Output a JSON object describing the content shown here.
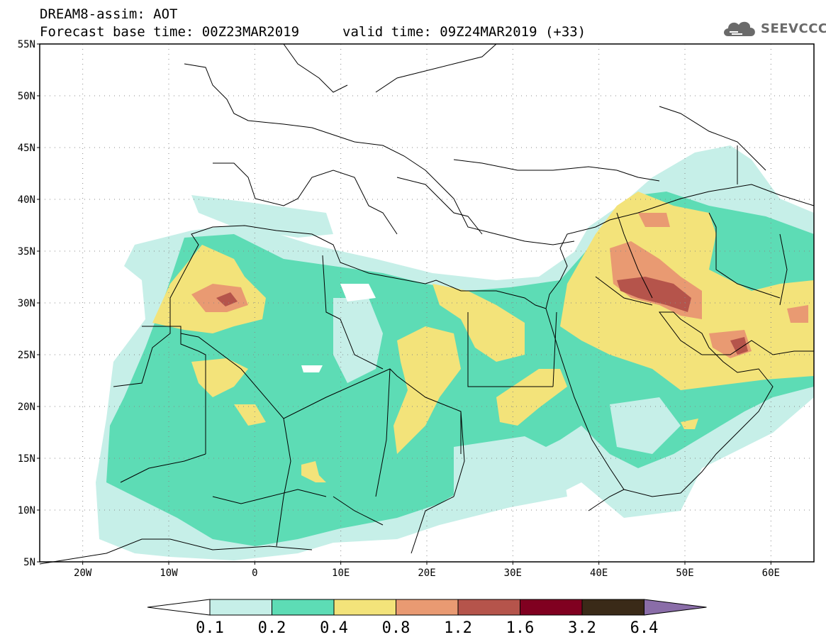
{
  "header": {
    "title": "DREAM8-assim: AOT",
    "base_time": "Forecast base time: 00Z23MAR2019",
    "valid_time": "valid time: 09Z24MAR2019 (+33)"
  },
  "logo": {
    "text": "SEEVCCC",
    "icon": "cloud-icon"
  },
  "map": {
    "lat_labels": [
      "55N",
      "50N",
      "45N",
      "40N",
      "35N",
      "30N",
      "25N",
      "20N",
      "15N",
      "10N",
      "5N"
    ],
    "lon_labels": [
      "20W",
      "10W",
      "0",
      "10E",
      "20E",
      "30E",
      "40E",
      "50E",
      "60E"
    ],
    "lat_range": [
      5,
      55
    ],
    "lon_range": [
      -25,
      65
    ],
    "grid": "dotted"
  },
  "colorbar": {
    "labels": [
      "0.1",
      "0.2",
      "0.4",
      "0.8",
      "1.2",
      "1.6",
      "3.2",
      "6.4"
    ],
    "colors": [
      "#ffffff",
      "#c6efe8",
      "#5ddcb5",
      "#f3e37a",
      "#e99a72",
      "#b5544b",
      "#800020",
      "#3a2a18",
      "#8a6da8"
    ]
  }
}
